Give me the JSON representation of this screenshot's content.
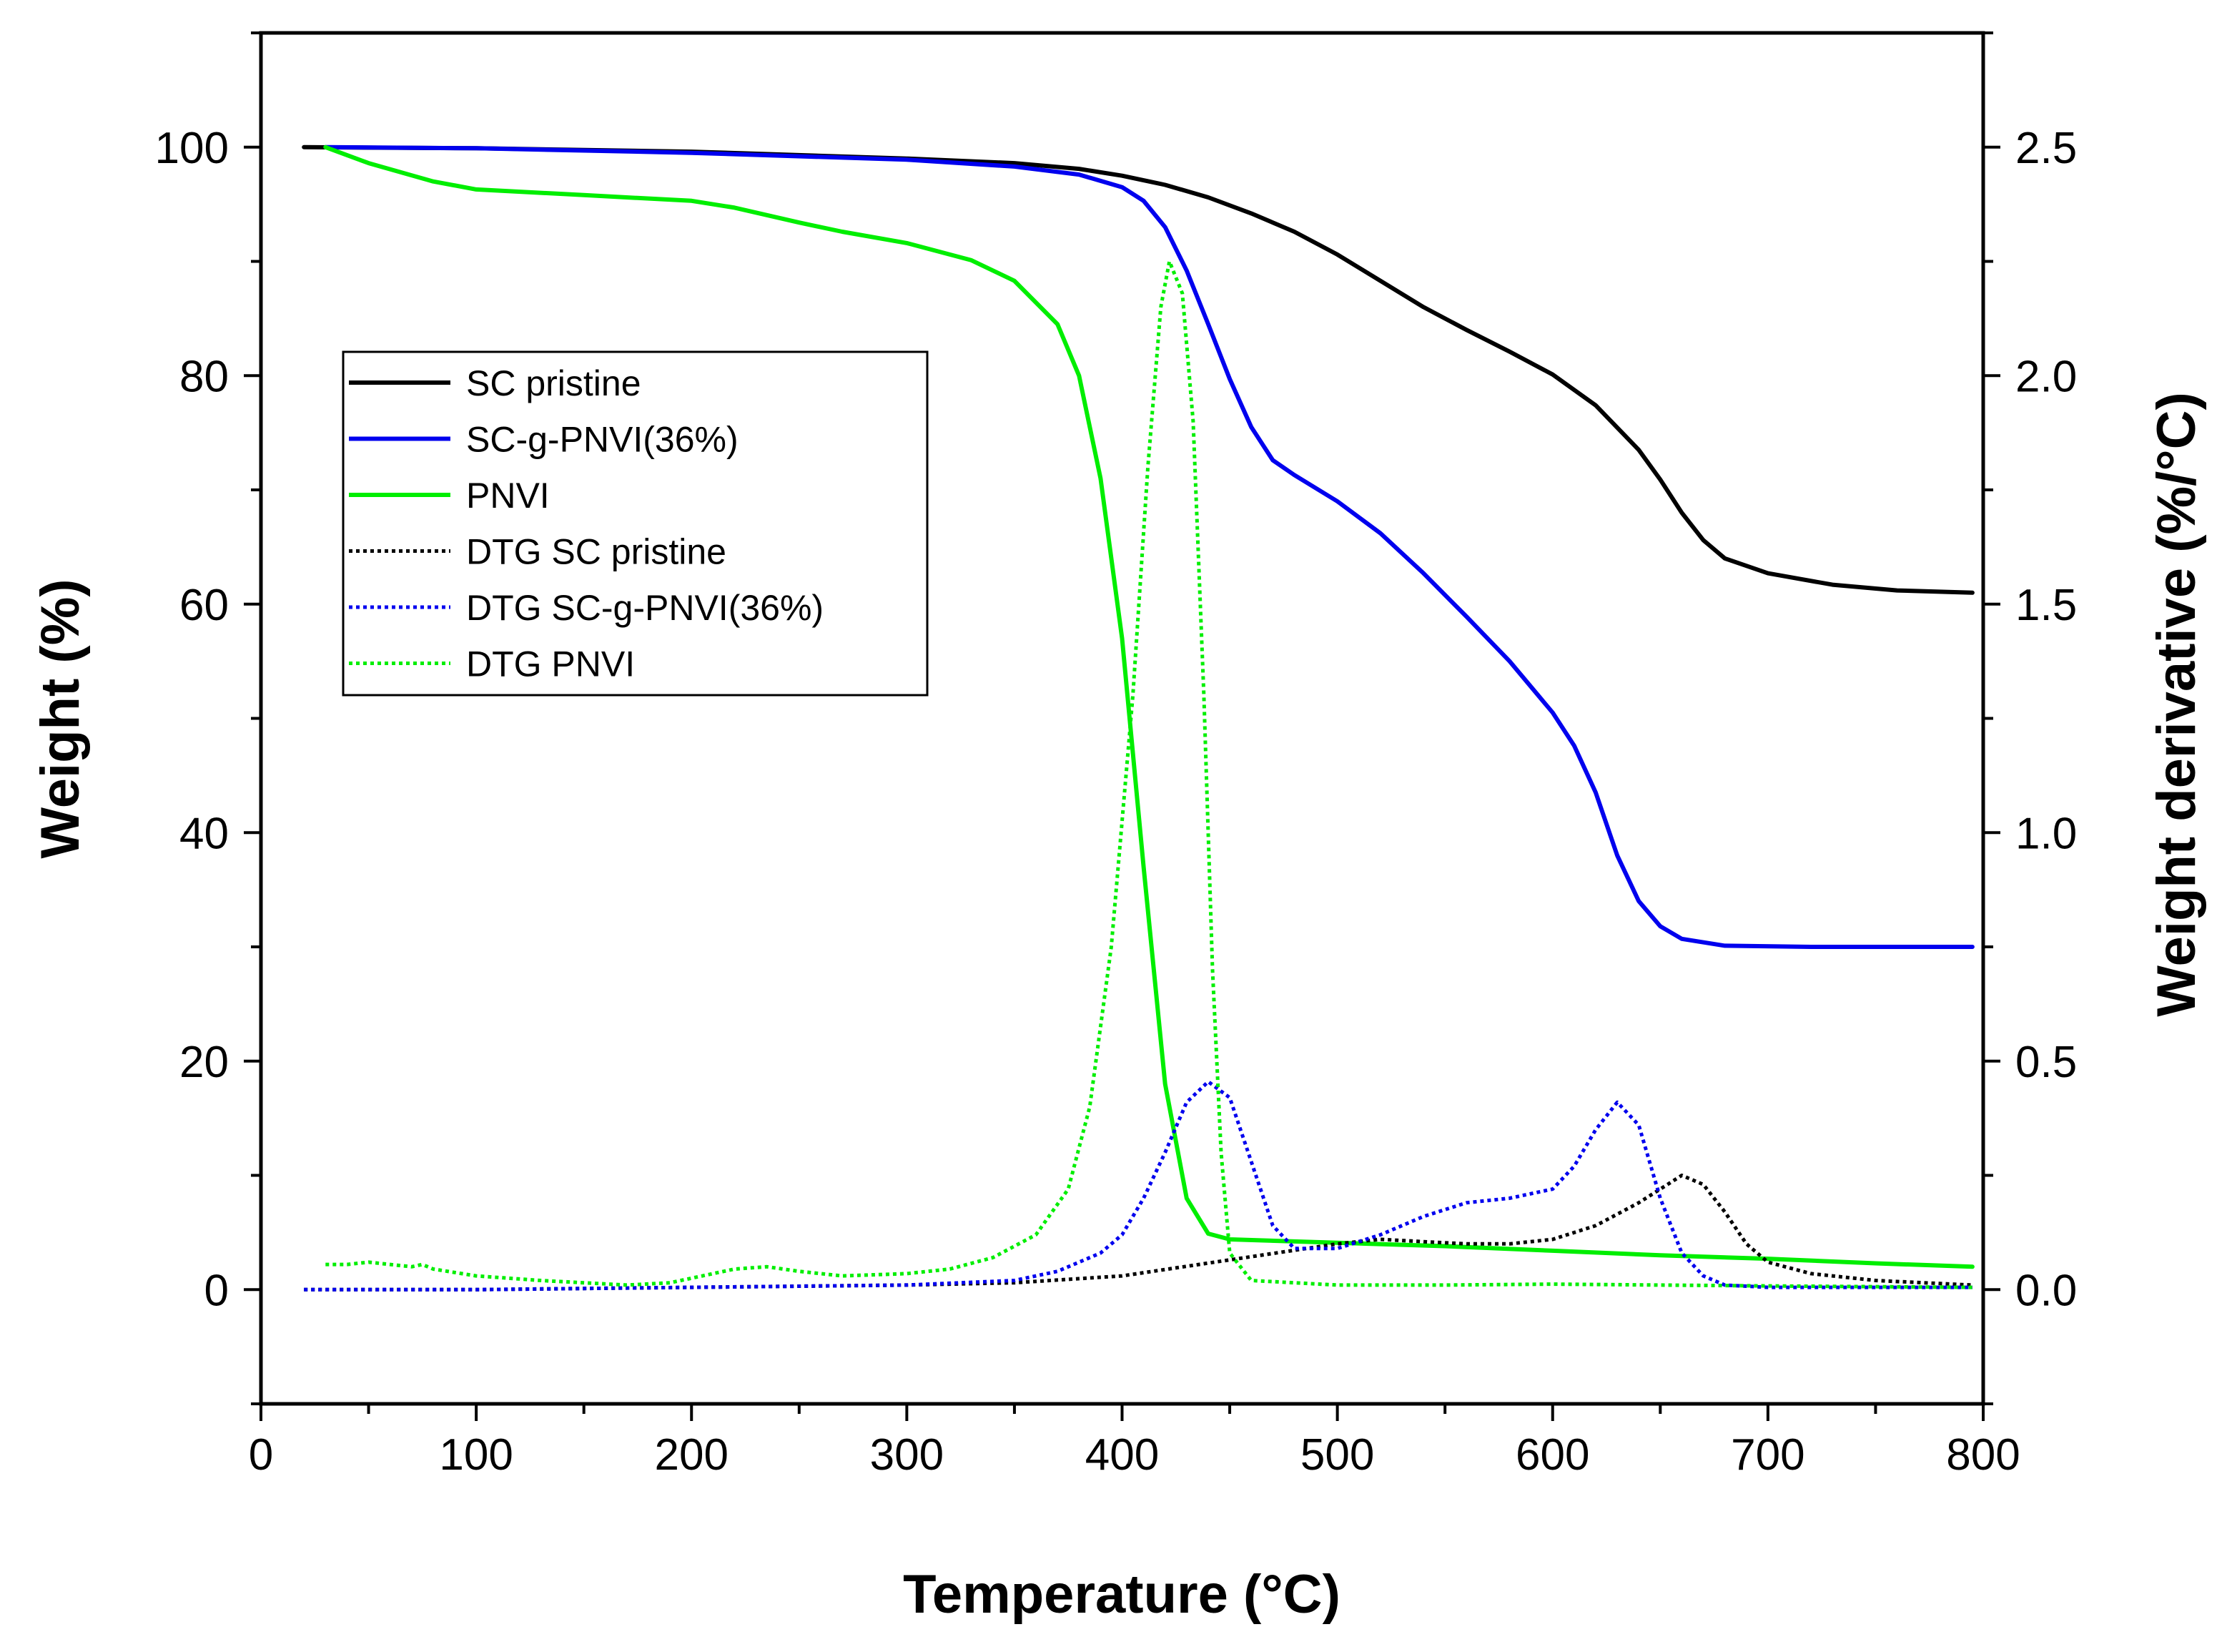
{
  "chart_data": {
    "type": "line",
    "title": "",
    "xlabel": "Temperature (°C)",
    "ylabel": "Weight (%)",
    "y2label": "Weight derivative (%/°C)",
    "xlim": [
      0,
      800
    ],
    "ylim": [
      -10,
      110
    ],
    "y2lim": [
      -0.25,
      2.75
    ],
    "x_ticks": [
      0,
      100,
      200,
      300,
      400,
      500,
      600,
      700,
      800
    ],
    "y_ticks": [
      0,
      20,
      40,
      60,
      80,
      100
    ],
    "y2_ticks": [
      0.0,
      0.5,
      1.0,
      1.5,
      2.0,
      2.5
    ],
    "x_tick_labels": [
      "0",
      "100",
      "200",
      "300",
      "400",
      "500",
      "600",
      "700",
      "800"
    ],
    "y_tick_labels": [
      "0",
      "20",
      "40",
      "60",
      "80",
      "100"
    ],
    "y2_tick_labels": [
      "0.0",
      "0.5",
      "1.0",
      "1.5",
      "2.0",
      "2.5"
    ],
    "legend_position": "upper-left",
    "grid": false,
    "series": [
      {
        "name": "SC pristine",
        "color": "#000000",
        "style": "solid",
        "axis": "left",
        "points": [
          [
            20,
            100
          ],
          [
            100,
            99.9
          ],
          [
            200,
            99.6
          ],
          [
            300,
            99.0
          ],
          [
            350,
            98.6
          ],
          [
            380,
            98.1
          ],
          [
            400,
            97.5
          ],
          [
            420,
            96.7
          ],
          [
            440,
            95.6
          ],
          [
            460,
            94.2
          ],
          [
            480,
            92.6
          ],
          [
            500,
            90.6
          ],
          [
            520,
            88.3
          ],
          [
            540,
            86.0
          ],
          [
            560,
            84.0
          ],
          [
            580,
            82.1
          ],
          [
            600,
            80.1
          ],
          [
            620,
            77.4
          ],
          [
            640,
            73.5
          ],
          [
            650,
            70.9
          ],
          [
            660,
            68.0
          ],
          [
            670,
            65.6
          ],
          [
            680,
            64.0
          ],
          [
            700,
            62.7
          ],
          [
            730,
            61.7
          ],
          [
            760,
            61.2
          ],
          [
            795,
            61.0
          ]
        ]
      },
      {
        "name": "SC-g-PNVI(36%)",
        "color": "#0000ee",
        "style": "solid",
        "axis": "left",
        "points": [
          [
            30,
            100
          ],
          [
            100,
            99.9
          ],
          [
            200,
            99.5
          ],
          [
            300,
            98.9
          ],
          [
            350,
            98.3
          ],
          [
            380,
            97.6
          ],
          [
            400,
            96.5
          ],
          [
            410,
            95.3
          ],
          [
            420,
            93.0
          ],
          [
            430,
            89.2
          ],
          [
            440,
            84.5
          ],
          [
            450,
            79.7
          ],
          [
            460,
            75.5
          ],
          [
            470,
            72.6
          ],
          [
            480,
            71.3
          ],
          [
            500,
            69.0
          ],
          [
            520,
            66.2
          ],
          [
            540,
            62.7
          ],
          [
            560,
            58.9
          ],
          [
            580,
            55.0
          ],
          [
            600,
            50.5
          ],
          [
            610,
            47.6
          ],
          [
            620,
            43.5
          ],
          [
            630,
            38.0
          ],
          [
            640,
            34.0
          ],
          [
            650,
            31.8
          ],
          [
            660,
            30.7
          ],
          [
            680,
            30.1
          ],
          [
            720,
            30.0
          ],
          [
            795,
            30.0
          ]
        ]
      },
      {
        "name": "PNVI",
        "color": "#00ee00",
        "style": "solid",
        "axis": "left",
        "points": [
          [
            30,
            100
          ],
          [
            50,
            98.6
          ],
          [
            80,
            97.0
          ],
          [
            100,
            96.3
          ],
          [
            150,
            95.8
          ],
          [
            200,
            95.3
          ],
          [
            220,
            94.7
          ],
          [
            250,
            93.4
          ],
          [
            270,
            92.6
          ],
          [
            300,
            91.6
          ],
          [
            330,
            90.1
          ],
          [
            350,
            88.3
          ],
          [
            370,
            84.5
          ],
          [
            380,
            80.0
          ],
          [
            390,
            71.0
          ],
          [
            400,
            57.0
          ],
          [
            410,
            37.0
          ],
          [
            420,
            18.0
          ],
          [
            430,
            8.0
          ],
          [
            440,
            4.9
          ],
          [
            450,
            4.4
          ],
          [
            500,
            4.1
          ],
          [
            550,
            3.8
          ],
          [
            600,
            3.4
          ],
          [
            650,
            3.0
          ],
          [
            700,
            2.7
          ],
          [
            750,
            2.3
          ],
          [
            795,
            2.0
          ]
        ]
      },
      {
        "name": "DTG SC pristine",
        "color": "#000000",
        "style": "dotted",
        "axis": "right",
        "points": [
          [
            20,
            0.0
          ],
          [
            100,
            0.0
          ],
          [
            200,
            0.005
          ],
          [
            300,
            0.01
          ],
          [
            350,
            0.015
          ],
          [
            400,
            0.03
          ],
          [
            450,
            0.065
          ],
          [
            500,
            0.1
          ],
          [
            520,
            0.11
          ],
          [
            540,
            0.105
          ],
          [
            560,
            0.1
          ],
          [
            580,
            0.1
          ],
          [
            600,
            0.11
          ],
          [
            620,
            0.14
          ],
          [
            640,
            0.19
          ],
          [
            650,
            0.22
          ],
          [
            660,
            0.25
          ],
          [
            670,
            0.23
          ],
          [
            680,
            0.17
          ],
          [
            690,
            0.1
          ],
          [
            700,
            0.06
          ],
          [
            720,
            0.035
          ],
          [
            750,
            0.02
          ],
          [
            795,
            0.01
          ]
        ]
      },
      {
        "name": "DTG SC-g-PNVI(36%)",
        "color": "#0000ee",
        "style": "dotted",
        "axis": "right",
        "points": [
          [
            20,
            0.0
          ],
          [
            100,
            0.0
          ],
          [
            200,
            0.005
          ],
          [
            300,
            0.01
          ],
          [
            350,
            0.02
          ],
          [
            370,
            0.04
          ],
          [
            390,
            0.08
          ],
          [
            400,
            0.12
          ],
          [
            410,
            0.2
          ],
          [
            420,
            0.3
          ],
          [
            430,
            0.41
          ],
          [
            440,
            0.455
          ],
          [
            450,
            0.42
          ],
          [
            460,
            0.28
          ],
          [
            470,
            0.14
          ],
          [
            480,
            0.09
          ],
          [
            500,
            0.09
          ],
          [
            520,
            0.12
          ],
          [
            540,
            0.16
          ],
          [
            560,
            0.19
          ],
          [
            580,
            0.2
          ],
          [
            600,
            0.22
          ],
          [
            610,
            0.27
          ],
          [
            620,
            0.35
          ],
          [
            630,
            0.41
          ],
          [
            640,
            0.36
          ],
          [
            650,
            0.2
          ],
          [
            660,
            0.08
          ],
          [
            670,
            0.03
          ],
          [
            680,
            0.01
          ],
          [
            700,
            0.005
          ],
          [
            795,
            0.005
          ]
        ]
      },
      {
        "name": "DTG PNVI",
        "color": "#00ee00",
        "style": "dotted",
        "axis": "right",
        "points": [
          [
            30,
            0.055
          ],
          [
            40,
            0.055
          ],
          [
            50,
            0.06
          ],
          [
            60,
            0.055
          ],
          [
            70,
            0.05
          ],
          [
            75,
            0.055
          ],
          [
            80,
            0.045
          ],
          [
            100,
            0.03
          ],
          [
            130,
            0.02
          ],
          [
            150,
            0.015
          ],
          [
            170,
            0.01
          ],
          [
            190,
            0.015
          ],
          [
            210,
            0.035
          ],
          [
            220,
            0.045
          ],
          [
            235,
            0.05
          ],
          [
            250,
            0.04
          ],
          [
            270,
            0.03
          ],
          [
            300,
            0.035
          ],
          [
            320,
            0.045
          ],
          [
            340,
            0.07
          ],
          [
            360,
            0.12
          ],
          [
            375,
            0.22
          ],
          [
            385,
            0.4
          ],
          [
            395,
            0.75
          ],
          [
            405,
            1.3
          ],
          [
            412,
            1.8
          ],
          [
            418,
            2.15
          ],
          [
            422,
            2.25
          ],
          [
            428,
            2.18
          ],
          [
            433,
            1.9
          ],
          [
            438,
            1.3
          ],
          [
            442,
            0.7
          ],
          [
            446,
            0.3
          ],
          [
            450,
            0.08
          ],
          [
            460,
            0.02
          ],
          [
            500,
            0.01
          ],
          [
            550,
            0.01
          ],
          [
            600,
            0.012
          ],
          [
            650,
            0.01
          ],
          [
            700,
            0.008
          ],
          [
            795,
            0.005
          ]
        ]
      }
    ]
  }
}
